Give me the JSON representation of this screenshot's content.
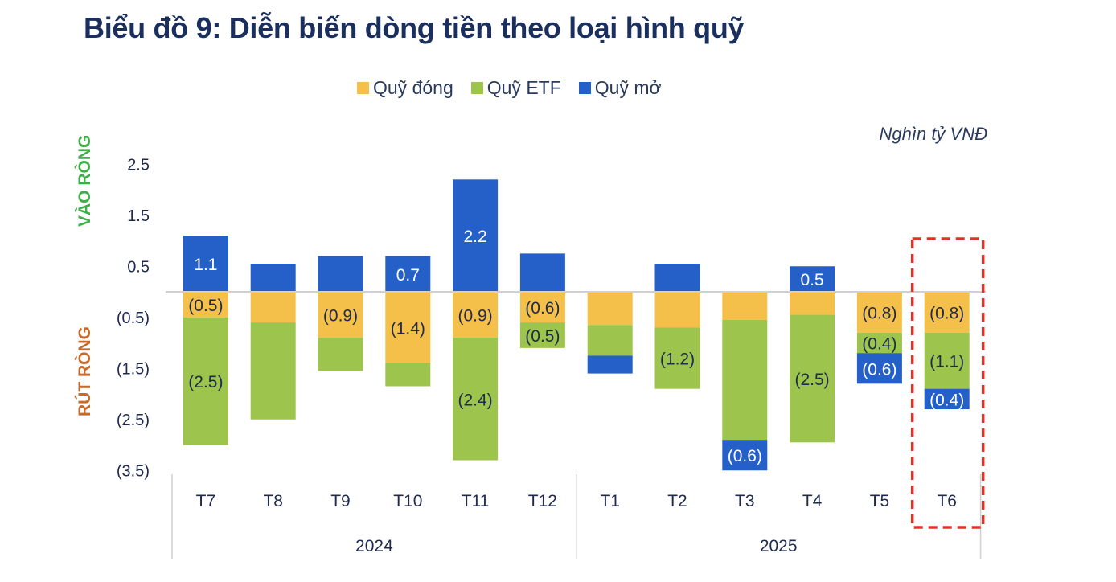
{
  "chart_data": {
    "type": "bar",
    "stacked": true,
    "title": "Biểu đồ 9: Diễn biến dòng tiền theo loại hình quỹ",
    "unit_label": "Nghìn tỷ VNĐ",
    "positive_label": "VÀO RÒNG",
    "negative_label": "RÚT RÒNG",
    "xlabel": "",
    "ylabel": "",
    "ylim": [
      -3.5,
      2.5
    ],
    "yticks": [
      2.5,
      1.5,
      0.5,
      -0.5,
      -1.5,
      -2.5,
      -3.5
    ],
    "ytick_labels": [
      "2.5",
      "1.5",
      "0.5",
      "(0.5)",
      "(1.5)",
      "(2.5)",
      "(3.5)"
    ],
    "grid": false,
    "legend_position": "top",
    "categories": [
      "T7",
      "T8",
      "T9",
      "T10",
      "T11",
      "T12",
      "T1",
      "T2",
      "T3",
      "T4",
      "T5",
      "T6"
    ],
    "groups": [
      {
        "label": "2024",
        "categories": [
          "T7",
          "T8",
          "T9",
          "T10",
          "T11",
          "T12"
        ]
      },
      {
        "label": "2025",
        "categories": [
          "T1",
          "T2",
          "T3",
          "T4",
          "T5",
          "T6"
        ]
      }
    ],
    "series": [
      {
        "name": "Quỹ đóng",
        "color": "#f5c04a",
        "values": [
          -0.5,
          -0.6,
          -0.9,
          -1.4,
          -0.9,
          -0.6,
          -0.65,
          -0.7,
          -0.55,
          -0.45,
          -0.8,
          -0.8
        ],
        "labels": [
          "(0.5)",
          "",
          "(0.9)",
          "(1.4)",
          "(0.9)",
          "(0.6)",
          "",
          "",
          "",
          "",
          "(0.8)",
          "(0.8)"
        ]
      },
      {
        "name": "Quỹ ETF",
        "color": "#9dc44d",
        "values": [
          -2.5,
          -1.9,
          -0.65,
          -0.45,
          -2.4,
          -0.5,
          -0.6,
          -1.2,
          -2.35,
          -2.5,
          -0.4,
          -1.1
        ],
        "labels": [
          "(2.5)",
          "",
          "",
          "",
          "(2.4)",
          "(0.5)",
          "",
          "(1.2)",
          "",
          "(2.5)",
          "(0.4)",
          "(1.1)"
        ]
      },
      {
        "name": "Quỹ mở",
        "color": "#2460c8",
        "values": [
          1.1,
          0.55,
          0.7,
          0.7,
          2.2,
          0.75,
          -0.35,
          0.55,
          -0.6,
          0.5,
          -0.6,
          -0.4
        ],
        "labels": [
          "1.1",
          "",
          "",
          "0.7",
          "2.2",
          "",
          "",
          "",
          "(0.6)",
          "0.5",
          "(0.6)",
          "(0.4)"
        ]
      }
    ],
    "highlight": {
      "category": "T6",
      "style": "red-dashed-box"
    }
  },
  "colors": {
    "title": "#1b2f5e",
    "text": "#1f2a4e",
    "positive_label": "#3fae49",
    "negative_label": "#c8692a",
    "highlight": "#e0312a",
    "axis": "#d0d0d0"
  }
}
